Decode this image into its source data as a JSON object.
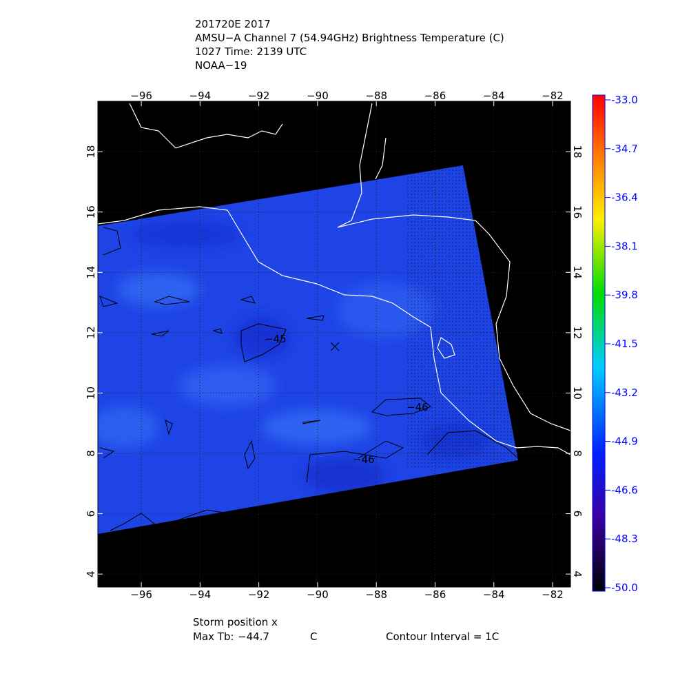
{
  "header": {
    "lines": [
      "201720E 2017",
      "AMSU−A Channel 7 (54.94GHz) Brightness Temperature (C)",
      "1027 Time: 2139 UTC",
      "NOAA−19"
    ]
  },
  "map": {
    "xlim": [
      -97.48,
      -81.39
    ],
    "ylim": [
      3.57,
      19.67
    ],
    "xticks": [
      -96,
      -94,
      -92,
      -90,
      -88,
      -86,
      -84,
      -82
    ],
    "yticks": [
      4,
      6,
      8,
      10,
      12,
      14,
      16,
      18
    ],
    "contour_labels": [
      -45,
      -46,
      -46
    ]
  },
  "colorbar": {
    "clim": [
      -50,
      -33
    ],
    "ticks": [
      {
        "value": -33,
        "label": "-33.0"
      },
      {
        "value": -34.7,
        "label": "-34.7"
      },
      {
        "value": -36.4,
        "label": "-36.4"
      },
      {
        "value": -38.1,
        "label": "-38.1"
      },
      {
        "value": -39.8,
        "label": "-39.8"
      },
      {
        "value": -41.5,
        "label": "-41.5"
      },
      {
        "value": -43.2,
        "label": "-43.2"
      },
      {
        "value": -44.9,
        "label": "-44.9"
      },
      {
        "value": -46.6,
        "label": "-46.6"
      },
      {
        "value": -48.3,
        "label": "-48.3"
      },
      {
        "value": -50,
        "label": "-50.0"
      }
    ]
  },
  "footer": {
    "storm": "Storm position x",
    "max_tb_label": "Max Tb:",
    "max_tb": -44.7,
    "max_tb_unit": "C",
    "contour_interval": "Contour Interval = 1C"
  }
}
